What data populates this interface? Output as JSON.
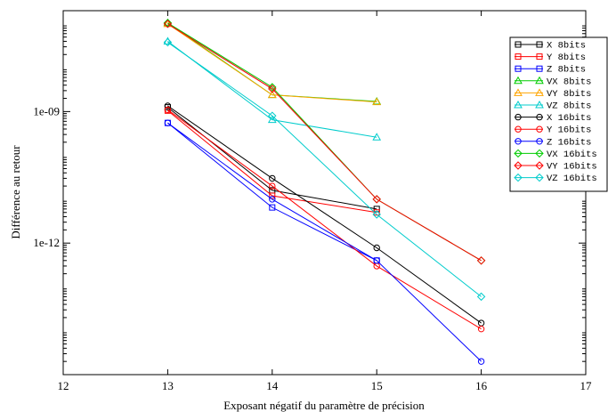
{
  "chart_data": {
    "type": "line",
    "xlabel": "Exposant négatif du paramètre de précision",
    "ylabel": "Différence au retour",
    "x_ticks": [
      12,
      13,
      14,
      15,
      16,
      17
    ],
    "xlim": [
      12,
      17
    ],
    "y_scale": "log",
    "y_ticks": [
      {
        "value": 1e-09,
        "label": "1e-09"
      },
      {
        "value": 1e-12,
        "label": "1e-12"
      }
    ],
    "ylim": [
      1e-15,
      2e-07
    ],
    "grid": false,
    "legend_position": "top-right",
    "series": [
      {
        "name": "X    8bits",
        "color": "#000000",
        "marker": "square",
        "x": [
          13,
          14,
          15
        ],
        "y": [
          1.25e-09,
          1.6e-11,
          6e-12
        ]
      },
      {
        "name": "Y    8bits",
        "color": "#ff0000",
        "marker": "square",
        "x": [
          13,
          14,
          15
        ],
        "y": [
          1.05e-09,
          1.2e-11,
          5e-12
        ]
      },
      {
        "name": "Z    8bits",
        "color": "#0000ff",
        "marker": "square",
        "x": [
          13,
          14,
          15
        ],
        "y": [
          5.5e-10,
          6.5e-12,
          4e-13
        ]
      },
      {
        "name": "VX   8bits",
        "color": "#00cc00",
        "marker": "triangle",
        "x": [
          13,
          14,
          15
        ],
        "y": [
          1.05e-07,
          2.4e-09,
          1.7e-09
        ]
      },
      {
        "name": "VY   8bits",
        "color": "#ffa500",
        "marker": "triangle",
        "x": [
          13,
          14,
          15
        ],
        "y": [
          1e-07,
          2.4e-09,
          1.65e-09
        ]
      },
      {
        "name": "VZ   8bits",
        "color": "#00cccc",
        "marker": "triangle",
        "x": [
          13,
          14,
          15
        ],
        "y": [
          4e-08,
          6.5e-10,
          2.6e-10
        ]
      },
      {
        "name": "X   16bits",
        "color": "#000000",
        "marker": "circle",
        "x": [
          13,
          14,
          15,
          16
        ],
        "y": [
          1.35e-09,
          3e-11,
          7.8e-13,
          1.5e-14
        ]
      },
      {
        "name": "Y   16bits",
        "color": "#ff0000",
        "marker": "circle",
        "x": [
          13,
          14,
          15,
          16
        ],
        "y": [
          1.1e-09,
          2e-11,
          3e-13,
          1.1e-14
        ]
      },
      {
        "name": "Z   16bits",
        "color": "#0000ff",
        "marker": "circle",
        "x": [
          13,
          14,
          15,
          16
        ],
        "y": [
          5.5e-10,
          1e-11,
          4e-13,
          2e-15
        ]
      },
      {
        "name": "VX  16bits",
        "color": "#00cc00",
        "marker": "diamond",
        "x": [
          13,
          14,
          15,
          16
        ],
        "y": [
          1.05e-07,
          3.6e-09,
          1e-11,
          4e-13
        ]
      },
      {
        "name": "VY  16bits",
        "color": "#ff0000",
        "marker": "diamond",
        "x": [
          13,
          14,
          15,
          16
        ],
        "y": [
          1e-07,
          3.3e-09,
          1e-11,
          4e-13
        ]
      },
      {
        "name": "VZ  16bits",
        "color": "#00cccc",
        "marker": "diamond",
        "x": [
          13,
          14,
          15,
          16
        ],
        "y": [
          3.8e-08,
          8e-10,
          4.5e-12,
          6e-14
        ]
      }
    ]
  }
}
